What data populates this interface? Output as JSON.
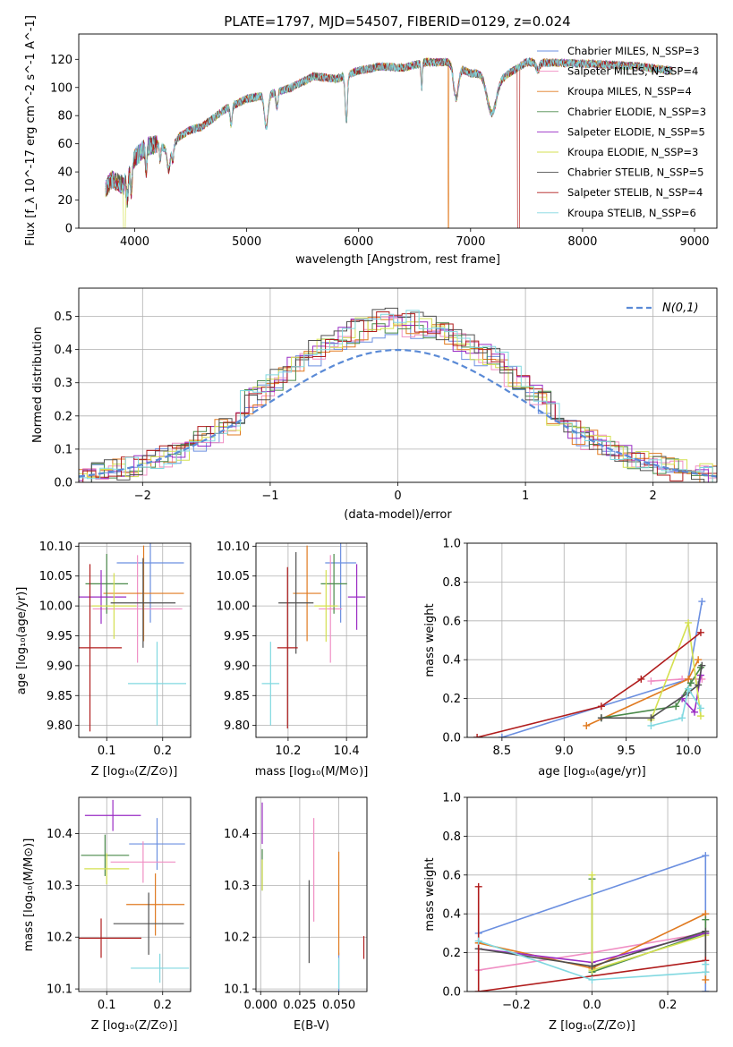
{
  "title": "PLATE=1797, MJD=54507, FIBERID=0129, z=0.024",
  "palette": [
    "#6b8fe0",
    "#f08fc4",
    "#e07a20",
    "#4a8a4a",
    "#9a2cc4",
    "#d4e050",
    "#505050",
    "#b01c1c",
    "#80d8e0"
  ],
  "chart_data": [
    {
      "type": "line",
      "panel": "spectrum",
      "xlabel": "wavelength [Angstrom, rest frame]",
      "ylabel": "Flux [f_λ 10^-17 erg cm^-2 s^-1 A^-1]",
      "xlim": [
        3500,
        9200
      ],
      "ylim": [
        0,
        138
      ],
      "xticks": [
        4000,
        5000,
        6000,
        7000,
        8000,
        9000
      ],
      "yticks": [
        0,
        20,
        40,
        60,
        80,
        100,
        120
      ],
      "grid": false,
      "legend_position": "top-right",
      "continuum": {
        "x": [
          3740,
          3800,
          3900,
          3960,
          4000,
          4100,
          4200,
          4300,
          4400,
          4500,
          4600,
          4800,
          5000,
          5200,
          5400,
          5600,
          5800,
          6000,
          6200,
          6400,
          6600,
          6800,
          7000,
          7100,
          7300,
          7500,
          8000,
          8500,
          8800
        ],
        "y": [
          28,
          35,
          30,
          45,
          50,
          58,
          60,
          55,
          65,
          70,
          72,
          84,
          92,
          95,
          100,
          108,
          106,
          112,
          115,
          114,
          118,
          118,
          110,
          110,
          108,
          118,
          117,
          115,
          112
        ]
      },
      "series": [
        {
          "name": "Chabrier MILES, N_SSP=3"
        },
        {
          "name": "Salpeter MILES, N_SSP=4"
        },
        {
          "name": "Kroupa MILES, N_SSP=4"
        },
        {
          "name": "Chabrier ELODIE, N_SSP=3"
        },
        {
          "name": "Salpeter ELODIE, N_SSP=5"
        },
        {
          "name": "Kroupa ELODIE, N_SSP=3"
        },
        {
          "name": "Chabrier STELIB, N_SSP=5"
        },
        {
          "name": "Salpeter STELIB, N_SSP=4"
        },
        {
          "name": "Kroupa STELIB, N_SSP=6"
        }
      ]
    },
    {
      "type": "line",
      "panel": "residual-distribution",
      "xlabel": "(data-model)/error",
      "ylabel": "Normed distribution",
      "xlim": [
        -2.5,
        2.5
      ],
      "ylim": [
        0,
        0.585
      ],
      "xticks": [
        -2,
        -1,
        0,
        1,
        2
      ],
      "yticks": [
        0.0,
        0.1,
        0.2,
        0.3,
        0.4,
        0.5
      ],
      "grid": true,
      "legend_position": "top-right",
      "reference_curve": {
        "name": "N(0,1)",
        "mean": 0,
        "sigma": 1,
        "style": "dashed"
      },
      "histogram_bin_width": 0.1
    },
    {
      "type": "scatter",
      "panel": "age-vs-Z",
      "xlabel": "Z [log10(Z/Z_sun)]",
      "ylabel": "age [log10(age/yr)]",
      "xlim": [
        0.05,
        0.25
      ],
      "ylim": [
        9.78,
        10.105
      ],
      "xticks": [
        0.1,
        0.2
      ],
      "yticks": [
        9.8,
        9.85,
        9.9,
        9.95,
        10.0,
        10.05,
        10.1
      ],
      "grid": true,
      "points": [
        {
          "x": 0.178,
          "y": 10.072,
          "xerr": 0.06,
          "yerr": 0.1
        },
        {
          "x": 0.155,
          "y": 9.995,
          "xerr": 0.08,
          "yerr": 0.09
        },
        {
          "x": 0.166,
          "y": 10.021,
          "xerr": 0.072,
          "yerr": 0.08
        },
        {
          "x": 0.1,
          "y": 10.037,
          "xerr": 0.038,
          "yerr": 0.05
        },
        {
          "x": 0.09,
          "y": 10.015,
          "xerr": 0.045,
          "yerr": 0.045
        },
        {
          "x": 0.113,
          "y": 10.0,
          "xerr": 0.04,
          "yerr": 0.055
        },
        {
          "x": 0.165,
          "y": 10.005,
          "xerr": 0.058,
          "yerr": 0.075
        },
        {
          "x": 0.07,
          "y": 9.93,
          "xerr": 0.057,
          "yerr": 0.14
        },
        {
          "x": 0.19,
          "y": 9.87,
          "xerr": 0.052,
          "yerr": 0.07
        }
      ]
    },
    {
      "type": "scatter",
      "panel": "age-vs-mass",
      "xlabel": "mass [log10(M/M_sun)]",
      "ylabel": "",
      "xlim": [
        10.09,
        10.47
      ],
      "ylim": [
        9.78,
        10.105
      ],
      "xticks": [
        10.2,
        10.4
      ],
      "yticks": [
        9.8,
        9.85,
        9.9,
        9.95,
        10.0,
        10.05,
        10.1
      ],
      "grid": true,
      "points": [
        {
          "x": 10.38,
          "y": 10.072,
          "xerr": 0.053,
          "yerr": 0.1
        },
        {
          "x": 10.345,
          "y": 9.995,
          "xerr": 0.04,
          "yerr": 0.09
        },
        {
          "x": 10.265,
          "y": 10.021,
          "xerr": 0.048,
          "yerr": 0.08
        },
        {
          "x": 10.357,
          "y": 10.037,
          "xerr": 0.045,
          "yerr": 0.05
        },
        {
          "x": 10.435,
          "y": 10.015,
          "xerr": 0.03,
          "yerr": 0.055
        },
        {
          "x": 10.33,
          "y": 10.0,
          "xerr": 0.04,
          "yerr": 0.06
        },
        {
          "x": 10.227,
          "y": 10.005,
          "xerr": 0.06,
          "yerr": 0.085
        },
        {
          "x": 10.198,
          "y": 9.93,
          "xerr": 0.035,
          "yerr": 0.135
        },
        {
          "x": 10.14,
          "y": 9.87,
          "xerr": 0.03,
          "yerr": 0.07
        }
      ]
    },
    {
      "type": "line",
      "panel": "mass-weight-vs-age",
      "xlabel": "age [log10(age/yr)]",
      "ylabel": "mass weight",
      "xlim": [
        8.22,
        10.23
      ],
      "ylim": [
        0,
        1.0
      ],
      "xticks": [
        8.5,
        9.0,
        9.5,
        10.0
      ],
      "yticks": [
        0.0,
        0.2,
        0.4,
        0.6,
        0.8,
        1.0
      ],
      "grid": true,
      "series": [
        {
          "x": [
            8.5,
            10.0,
            10.11
          ],
          "y": [
            0.0,
            0.3,
            0.7
          ]
        },
        {
          "x": [
            9.7,
            9.95,
            10.11
          ],
          "y": [
            0.29,
            0.3,
            0.3
          ]
        },
        {
          "x": [
            9.18,
            10.0,
            10.08
          ],
          "y": [
            0.06,
            0.3,
            0.4
          ]
        },
        {
          "x": [
            9.3,
            9.9,
            10.02,
            10.1
          ],
          "y": [
            0.1,
            0.16,
            0.28,
            0.36
          ]
        },
        {
          "x": [
            9.95,
            10.05,
            10.1
          ],
          "y": [
            0.2,
            0.13,
            0.32
          ]
        },
        {
          "x": [
            9.7,
            10.0,
            10.1
          ],
          "y": [
            0.09,
            0.59,
            0.11
          ]
        },
        {
          "x": [
            9.3,
            9.7,
            10.0,
            10.08,
            10.11
          ],
          "y": [
            0.1,
            0.1,
            0.23,
            0.27,
            0.37
          ]
        },
        {
          "x": [
            8.3,
            9.3,
            9.62,
            10.1
          ],
          "y": [
            0.0,
            0.16,
            0.3,
            0.54
          ]
        },
        {
          "x": [
            9.7,
            9.95,
            10.0,
            10.1
          ],
          "y": [
            0.06,
            0.1,
            0.25,
            0.15
          ]
        }
      ]
    },
    {
      "type": "scatter",
      "panel": "mass-vs-Z",
      "xlabel": "Z [log10(Z/Z_sun)]",
      "ylabel": "mass [log10(M/M_sun)]",
      "xlim": [
        0.05,
        0.25
      ],
      "ylim": [
        10.095,
        10.47
      ],
      "xticks": [
        0.1,
        0.2
      ],
      "yticks": [
        10.1,
        10.2,
        10.3,
        10.4
      ],
      "grid": true,
      "points": [
        {
          "x": 0.19,
          "y": 10.38,
          "xerr": 0.05,
          "yerr": 0.05
        },
        {
          "x": 0.165,
          "y": 10.345,
          "xerr": 0.058,
          "yerr": 0.04
        },
        {
          "x": 0.187,
          "y": 10.263,
          "xerr": 0.052,
          "yerr": 0.06
        },
        {
          "x": 0.097,
          "y": 10.358,
          "xerr": 0.043,
          "yerr": 0.04
        },
        {
          "x": 0.111,
          "y": 10.435,
          "xerr": 0.05,
          "yerr": 0.03
        },
        {
          "x": 0.1,
          "y": 10.332,
          "xerr": 0.04,
          "yerr": 0.03
        },
        {
          "x": 0.175,
          "y": 10.226,
          "xerr": 0.063,
          "yerr": 0.06
        },
        {
          "x": 0.09,
          "y": 10.198,
          "xerr": 0.072,
          "yerr": 0.038
        },
        {
          "x": 0.195,
          "y": 10.14,
          "xerr": 0.052,
          "yerr": 0.028
        }
      ]
    },
    {
      "type": "scatter",
      "panel": "mass-vs-EBV",
      "xlabel": "E(B-V)",
      "ylabel": "",
      "xlim": [
        -0.003,
        0.068
      ],
      "ylim": [
        10.095,
        10.47
      ],
      "xticks": [
        0.0,
        0.025,
        0.05
      ],
      "yticks": [
        10.1,
        10.2,
        10.3,
        10.4
      ],
      "grid": true,
      "points": [
        {
          "x": 0.05,
          "y": 10.12,
          "xerr": 0.0,
          "yerr": 0.05
        },
        {
          "x": 0.034,
          "y": 10.33,
          "xerr": 0.0,
          "yerr": 0.1
        },
        {
          "x": 0.05,
          "y": 10.265,
          "xerr": 0.0,
          "yerr": 0.1
        },
        {
          "x": 0.001,
          "y": 10.33,
          "xerr": 0.0,
          "yerr": 0.04
        },
        {
          "x": 0.001,
          "y": 10.42,
          "xerr": 0.0,
          "yerr": 0.04
        },
        {
          "x": 0.001,
          "y": 10.32,
          "xerr": 0.0,
          "yerr": 0.03
        },
        {
          "x": 0.031,
          "y": 10.23,
          "xerr": 0.0,
          "yerr": 0.08
        },
        {
          "x": 0.066,
          "y": 10.18,
          "xerr": 0.0,
          "yerr": 0.022
        },
        {
          "x": 0.05,
          "y": 10.13,
          "xerr": 0.0,
          "yerr": 0.03
        }
      ]
    },
    {
      "type": "line",
      "panel": "mass-weight-vs-Z",
      "xlabel": "Z [log10(Z/Z_sun)]",
      "ylabel": "mass weight",
      "xlim": [
        -0.33,
        0.33
      ],
      "ylim": [
        0,
        1.0
      ],
      "xticks": [
        -0.2,
        0.0,
        0.2
      ],
      "yticks": [
        0.0,
        0.2,
        0.4,
        0.6,
        0.8,
        1.0
      ],
      "grid": true,
      "series": [
        {
          "x": [
            -0.3,
            0.3,
            0.3
          ],
          "y": [
            0.3,
            0.7,
            0.0
          ]
        },
        {
          "x": [
            -0.3,
            0.0,
            0.3
          ],
          "y": [
            0.11,
            0.2,
            0.3
          ]
        },
        {
          "x": [
            -0.3,
            0.0,
            0.3,
            0.3
          ],
          "y": [
            0.25,
            0.12,
            0.4,
            0.06
          ]
        },
        {
          "x": [
            0.0,
            0.0,
            0.3,
            0.3
          ],
          "y": [
            0.58,
            0.1,
            0.3,
            0.37
          ]
        },
        {
          "x": [
            -0.3,
            0.0,
            0.3
          ],
          "y": [
            0.22,
            0.15,
            0.3
          ]
        },
        {
          "x": [
            0.0,
            0.0,
            0.3
          ],
          "y": [
            0.6,
            0.11,
            0.29
          ]
        },
        {
          "x": [
            -0.3,
            0.0,
            0.3,
            0.3
          ],
          "y": [
            0.22,
            0.13,
            0.31,
            0.1
          ]
        },
        {
          "x": [
            -0.3,
            -0.3,
            0.3
          ],
          "y": [
            0.54,
            0.0,
            0.16
          ]
        },
        {
          "x": [
            -0.3,
            0.0,
            0.3,
            0.3
          ],
          "y": [
            0.26,
            0.06,
            0.1,
            0.14
          ]
        }
      ]
    }
  ],
  "panel_labels": {
    "spectrum_xlabel": "wavelength [Angstrom, rest frame]",
    "resid_xlabel": "(data-model)/error",
    "resid_ylabel": "Normed distribution",
    "resid_legend": "N(0,1)",
    "mw_ylabel": "mass weight"
  }
}
